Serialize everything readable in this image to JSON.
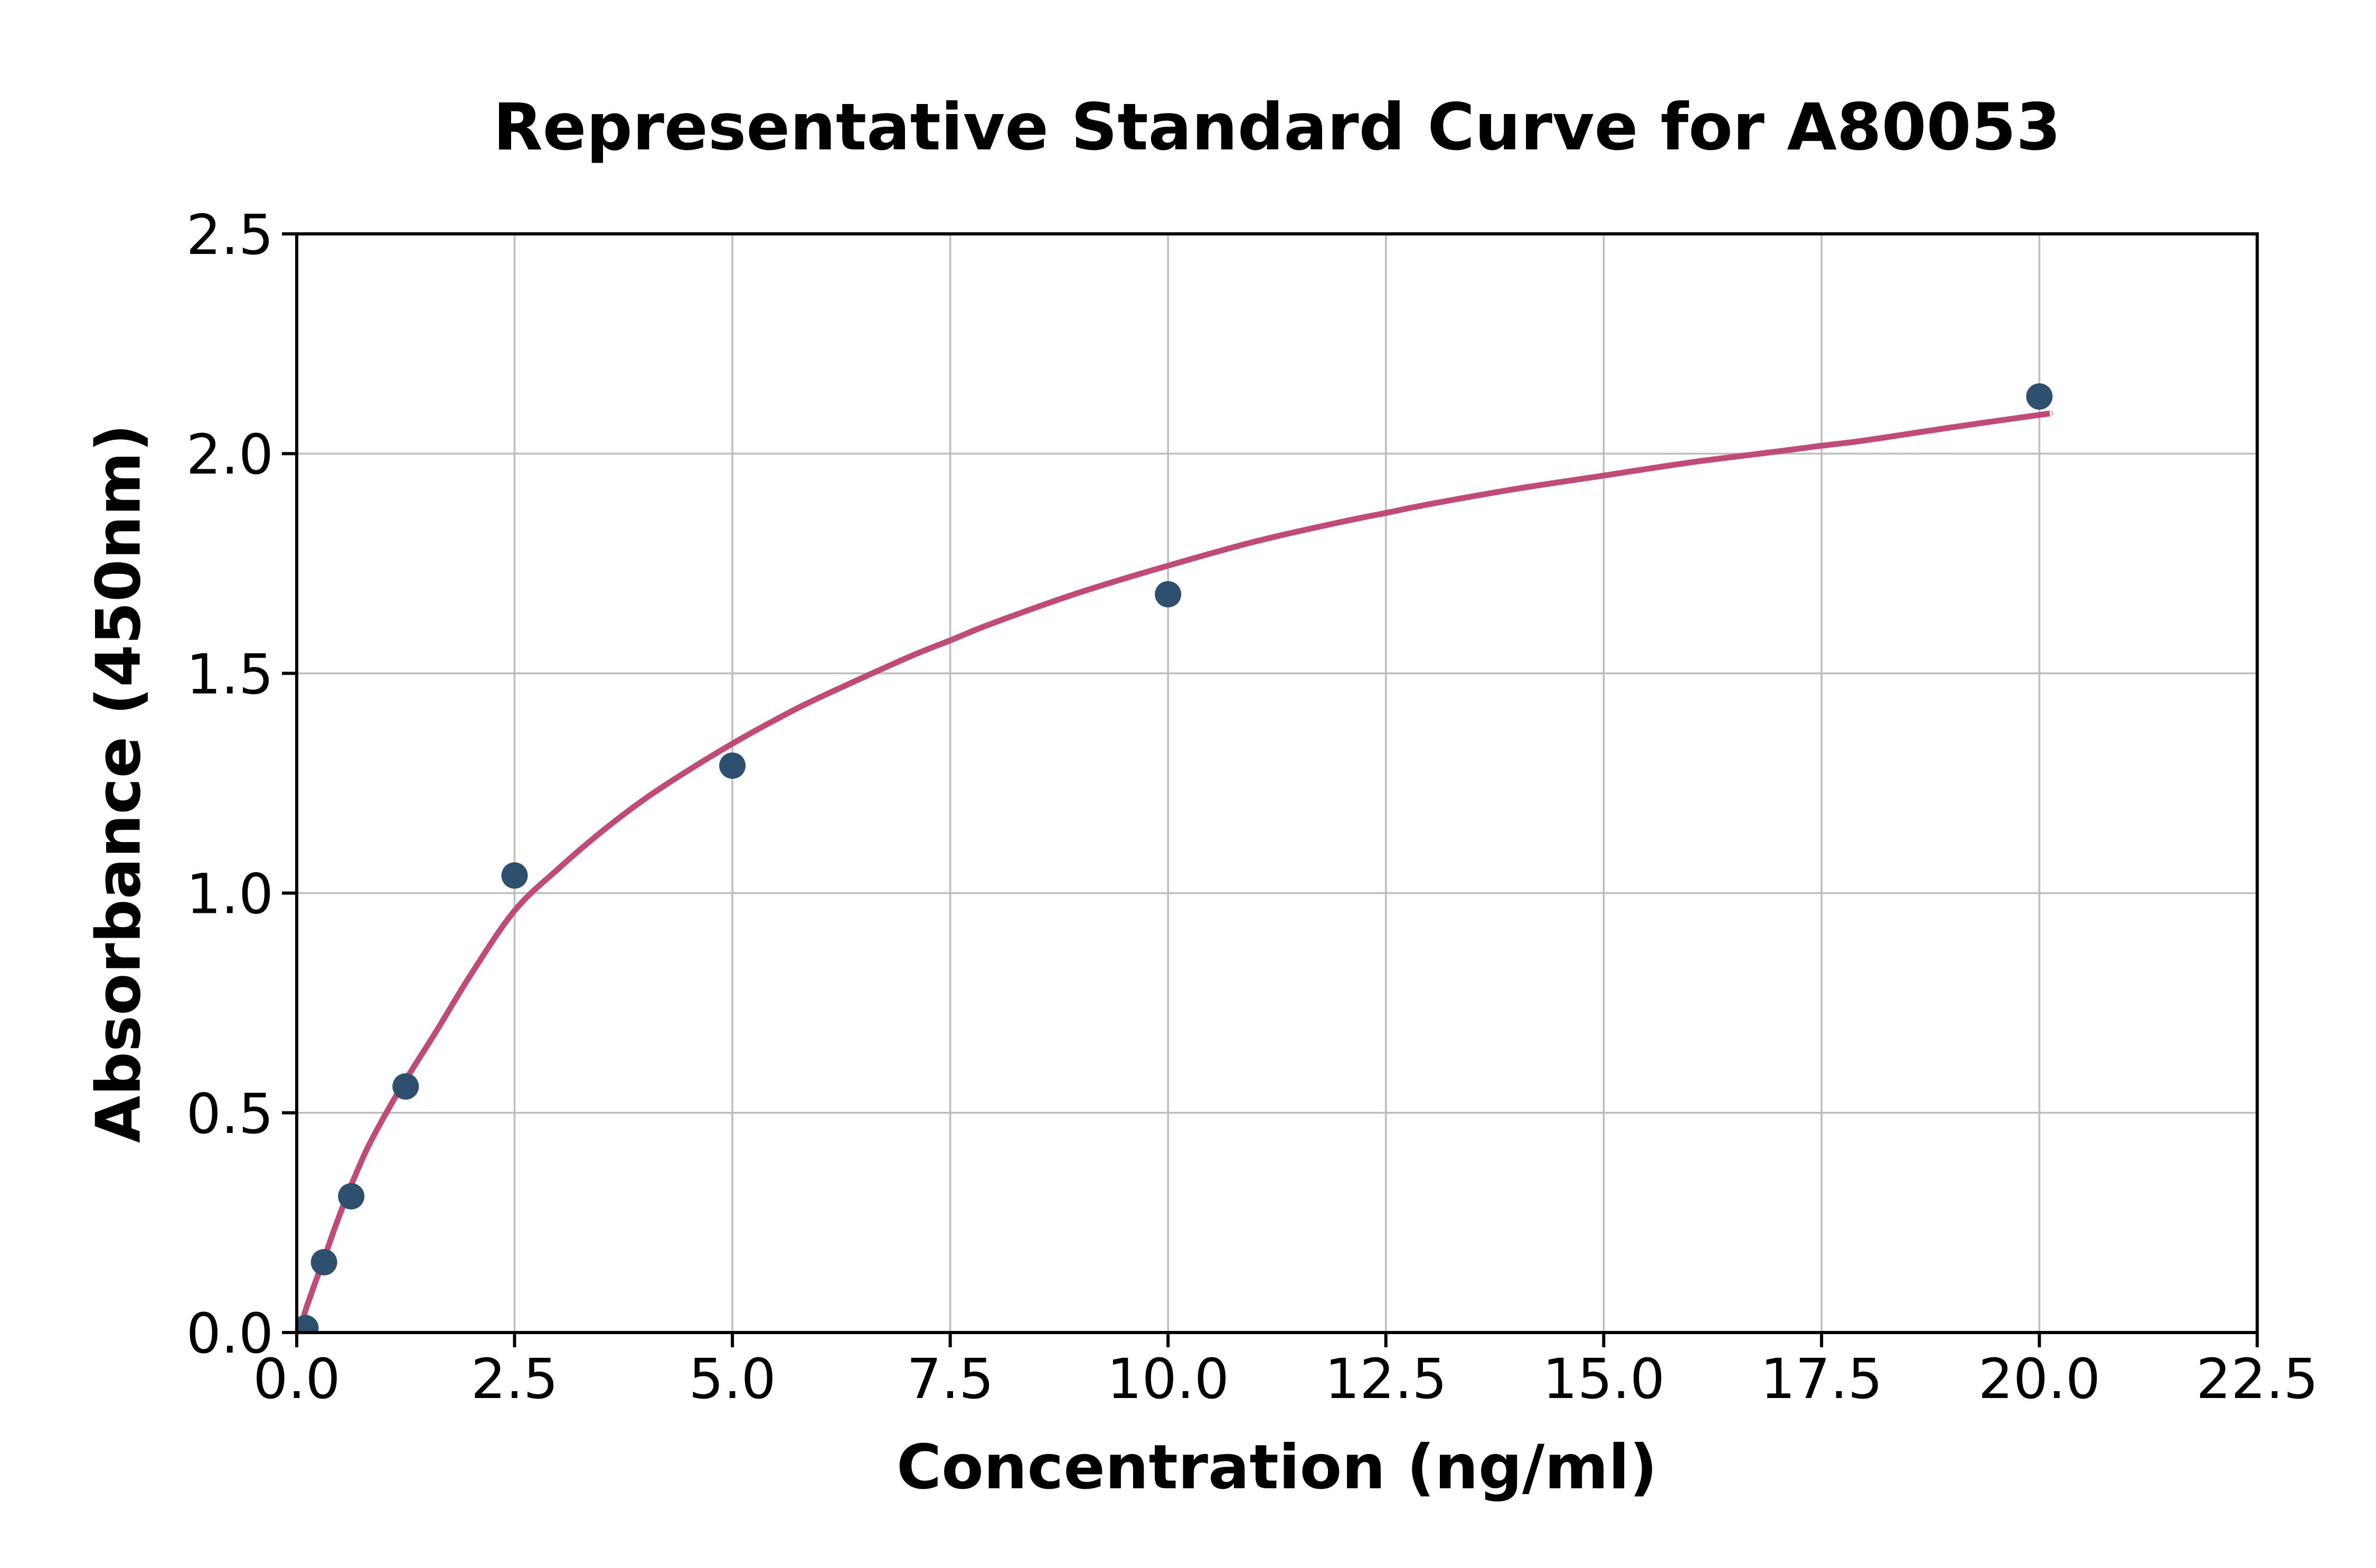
{
  "chart_data": {
    "type": "scatter",
    "title": "Representative Standard Curve for A80053",
    "xlabel": "Concentration (ng/ml)",
    "ylabel": "Absorbance (450nm)",
    "xlim": [
      0,
      22.5
    ],
    "ylim": [
      0,
      2.5
    ],
    "x_ticks": [
      0.0,
      2.5,
      5.0,
      7.5,
      10.0,
      12.5,
      15.0,
      17.5,
      20.0,
      22.5
    ],
    "x_tick_labels": [
      "0.0",
      "2.5",
      "5.0",
      "7.5",
      "10.0",
      "12.5",
      "15.0",
      "17.5",
      "20.0",
      "22.5"
    ],
    "y_ticks": [
      0.0,
      0.5,
      1.0,
      1.5,
      2.0,
      2.5
    ],
    "y_tick_labels": [
      "0.0",
      "0.5",
      "1.0",
      "1.5",
      "2.0",
      "2.5"
    ],
    "grid": true,
    "legend": "none",
    "series": [
      {
        "name": "standard-points",
        "type": "scatter",
        "points": [
          [
            0.1,
            0.01
          ],
          [
            0.313,
            0.16
          ],
          [
            0.625,
            0.31
          ],
          [
            1.25,
            0.56
          ],
          [
            2.5,
            1.04
          ],
          [
            5.0,
            1.29
          ],
          [
            10.0,
            1.68
          ],
          [
            20.0,
            2.13
          ]
        ]
      },
      {
        "name": "fitted-curve",
        "type": "line",
        "points": [
          [
            0.03,
            0.0
          ],
          [
            0.1,
            0.05
          ],
          [
            0.156,
            0.082
          ],
          [
            0.2,
            0.107
          ],
          [
            0.313,
            0.168
          ],
          [
            0.45,
            0.245
          ],
          [
            0.625,
            0.335
          ],
          [
            0.8,
            0.415
          ],
          [
            1.0,
            0.49
          ],
          [
            1.25,
            0.575
          ],
          [
            1.6,
            0.685
          ],
          [
            2.0,
            0.815
          ],
          [
            2.5,
            0.96
          ],
          [
            3.0,
            1.055
          ],
          [
            3.5,
            1.14
          ],
          [
            4.0,
            1.215
          ],
          [
            4.5,
            1.28
          ],
          [
            5.0,
            1.34
          ],
          [
            5.5,
            1.395
          ],
          [
            6.0,
            1.445
          ],
          [
            7.0,
            1.535
          ],
          [
            7.5,
            1.575
          ],
          [
            8.0,
            1.615
          ],
          [
            9.0,
            1.685
          ],
          [
            10.0,
            1.745
          ],
          [
            11.0,
            1.8
          ],
          [
            12.0,
            1.845
          ],
          [
            12.5,
            1.865
          ],
          [
            13.0,
            1.885
          ],
          [
            14.0,
            1.92
          ],
          [
            15.0,
            1.95
          ],
          [
            16.0,
            1.98
          ],
          [
            17.0,
            2.005
          ],
          [
            17.5,
            2.018
          ],
          [
            18.0,
            2.03
          ],
          [
            19.0,
            2.06
          ],
          [
            20.0,
            2.088
          ],
          [
            20.12,
            2.091
          ]
        ]
      }
    ],
    "colors": {
      "curve": "#c04a78",
      "points": "#2f4f6f",
      "grid": "#bdbdbd",
      "axis": "#000000",
      "background": "#ffffff"
    }
  }
}
